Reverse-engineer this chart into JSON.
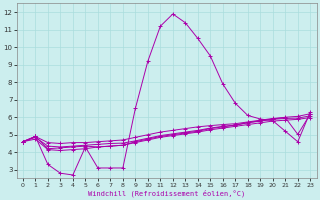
{
  "title": "",
  "xlabel": "Windchill (Refroidissement éolien,°C)",
  "background_color": "#cceeee",
  "line_color": "#aa00aa",
  "xlim": [
    -0.5,
    23.5
  ],
  "ylim": [
    2.5,
    12.5
  ],
  "xticks": [
    0,
    1,
    2,
    3,
    4,
    5,
    6,
    7,
    8,
    9,
    10,
    11,
    12,
    13,
    14,
    15,
    16,
    17,
    18,
    19,
    20,
    21,
    22,
    23
  ],
  "yticks": [
    3,
    4,
    5,
    6,
    7,
    8,
    9,
    10,
    11,
    12
  ],
  "grid_color": "#aadddd",
  "series": [
    [
      4.6,
      4.9,
      3.3,
      2.8,
      2.7,
      4.3,
      3.1,
      3.1,
      3.1,
      6.5,
      9.2,
      11.2,
      11.9,
      11.4,
      10.5,
      9.5,
      7.9,
      6.8,
      6.1,
      5.9,
      5.8,
      5.2,
      4.6,
      6.3
    ],
    [
      4.6,
      4.9,
      4.2,
      4.25,
      4.3,
      4.35,
      4.3,
      4.35,
      4.4,
      4.6,
      4.75,
      4.9,
      5.0,
      5.1,
      5.2,
      5.35,
      5.45,
      5.55,
      5.7,
      5.8,
      5.9,
      6.0,
      6.05,
      6.2
    ],
    [
      4.6,
      4.75,
      4.15,
      4.1,
      4.15,
      4.2,
      4.3,
      4.35,
      4.4,
      4.55,
      4.7,
      4.85,
      4.95,
      5.05,
      5.15,
      5.28,
      5.38,
      5.48,
      5.58,
      5.68,
      5.78,
      5.83,
      5.88,
      5.98
    ],
    [
      4.6,
      4.85,
      4.35,
      4.3,
      4.35,
      4.4,
      4.45,
      4.5,
      4.52,
      4.65,
      4.8,
      4.95,
      5.05,
      5.15,
      5.25,
      5.38,
      5.48,
      5.55,
      5.68,
      5.78,
      5.88,
      5.93,
      5.95,
      6.08
    ],
    [
      4.6,
      4.9,
      4.55,
      4.5,
      4.55,
      4.55,
      4.6,
      4.65,
      4.7,
      4.85,
      5.0,
      5.15,
      5.25,
      5.35,
      5.45,
      5.52,
      5.58,
      5.63,
      5.73,
      5.83,
      5.93,
      5.98,
      5.02,
      6.18
    ]
  ]
}
